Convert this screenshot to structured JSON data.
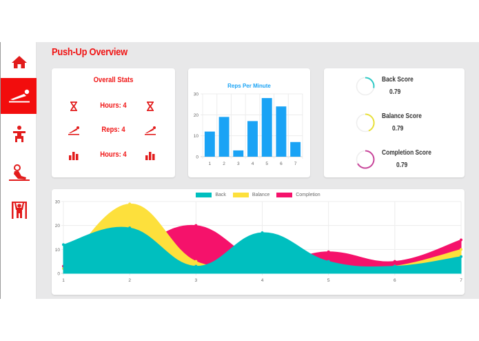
{
  "page": {
    "title": "Push-Up Overview"
  },
  "sidebar": {
    "items": [
      {
        "name": "home",
        "icon": "home-icon",
        "active": false
      },
      {
        "name": "push-up",
        "icon": "push-up-icon",
        "active": true
      },
      {
        "name": "squat",
        "icon": "squat-icon",
        "active": false
      },
      {
        "name": "sit-up",
        "icon": "sit-up-icon",
        "active": false
      },
      {
        "name": "pull-up",
        "icon": "pull-up-icon",
        "active": false
      }
    ]
  },
  "colors": {
    "accent": "#f20d0d",
    "bar": "#1aa3f5",
    "back": "#00bfbf",
    "balance": "#fde03c",
    "completion": "#f5126b"
  },
  "overall_stats": {
    "title": "Overall Stats",
    "rows": [
      {
        "icon": "hourglass-icon",
        "label": "Hours: 4"
      },
      {
        "icon": "push-up-incline-icon",
        "label": "Reps: 4"
      },
      {
        "icon": "bar-chart-icon",
        "label": "Hours: 4"
      }
    ]
  },
  "scores": [
    {
      "label": "Back Score",
      "value": "0.79",
      "color": "#2ec9c5"
    },
    {
      "label": "Balance Score",
      "value": "0.79",
      "color": "#e8e03a"
    },
    {
      "label": "Completion Score",
      "value": "0.79",
      "color": "#c8459a"
    }
  ],
  "chart_data": [
    {
      "type": "bar",
      "title": "Reps Per Minute",
      "categories": [
        "1",
        "2",
        "3",
        "4",
        "5",
        "6",
        "7"
      ],
      "values": [
        12,
        19,
        3,
        17,
        28,
        24,
        7
      ],
      "xlabel": "",
      "ylabel": "",
      "ylim": [
        0,
        30
      ],
      "yticks": [
        0,
        10,
        20,
        30
      ],
      "grid": true,
      "color": "#1aa3f5"
    },
    {
      "type": "area",
      "title": "",
      "x": [
        "1",
        "2",
        "3",
        "4",
        "5",
        "6",
        "7"
      ],
      "series": [
        {
          "name": "Back",
          "values": [
            12,
            19,
            3,
            17,
            5,
            3,
            7
          ],
          "color": "#00bfbf"
        },
        {
          "name": "Balance",
          "values": [
            2,
            29,
            5,
            5,
            2,
            3,
            10
          ],
          "color": "#fde03c"
        },
        {
          "name": "Completion",
          "values": [
            3,
            10,
            20,
            5,
            9,
            5,
            14
          ],
          "color": "#f5126b"
        }
      ],
      "ylim": [
        0,
        30
      ],
      "yticks": [
        0,
        10,
        20,
        30
      ],
      "grid": true,
      "legend_position": "top"
    }
  ]
}
